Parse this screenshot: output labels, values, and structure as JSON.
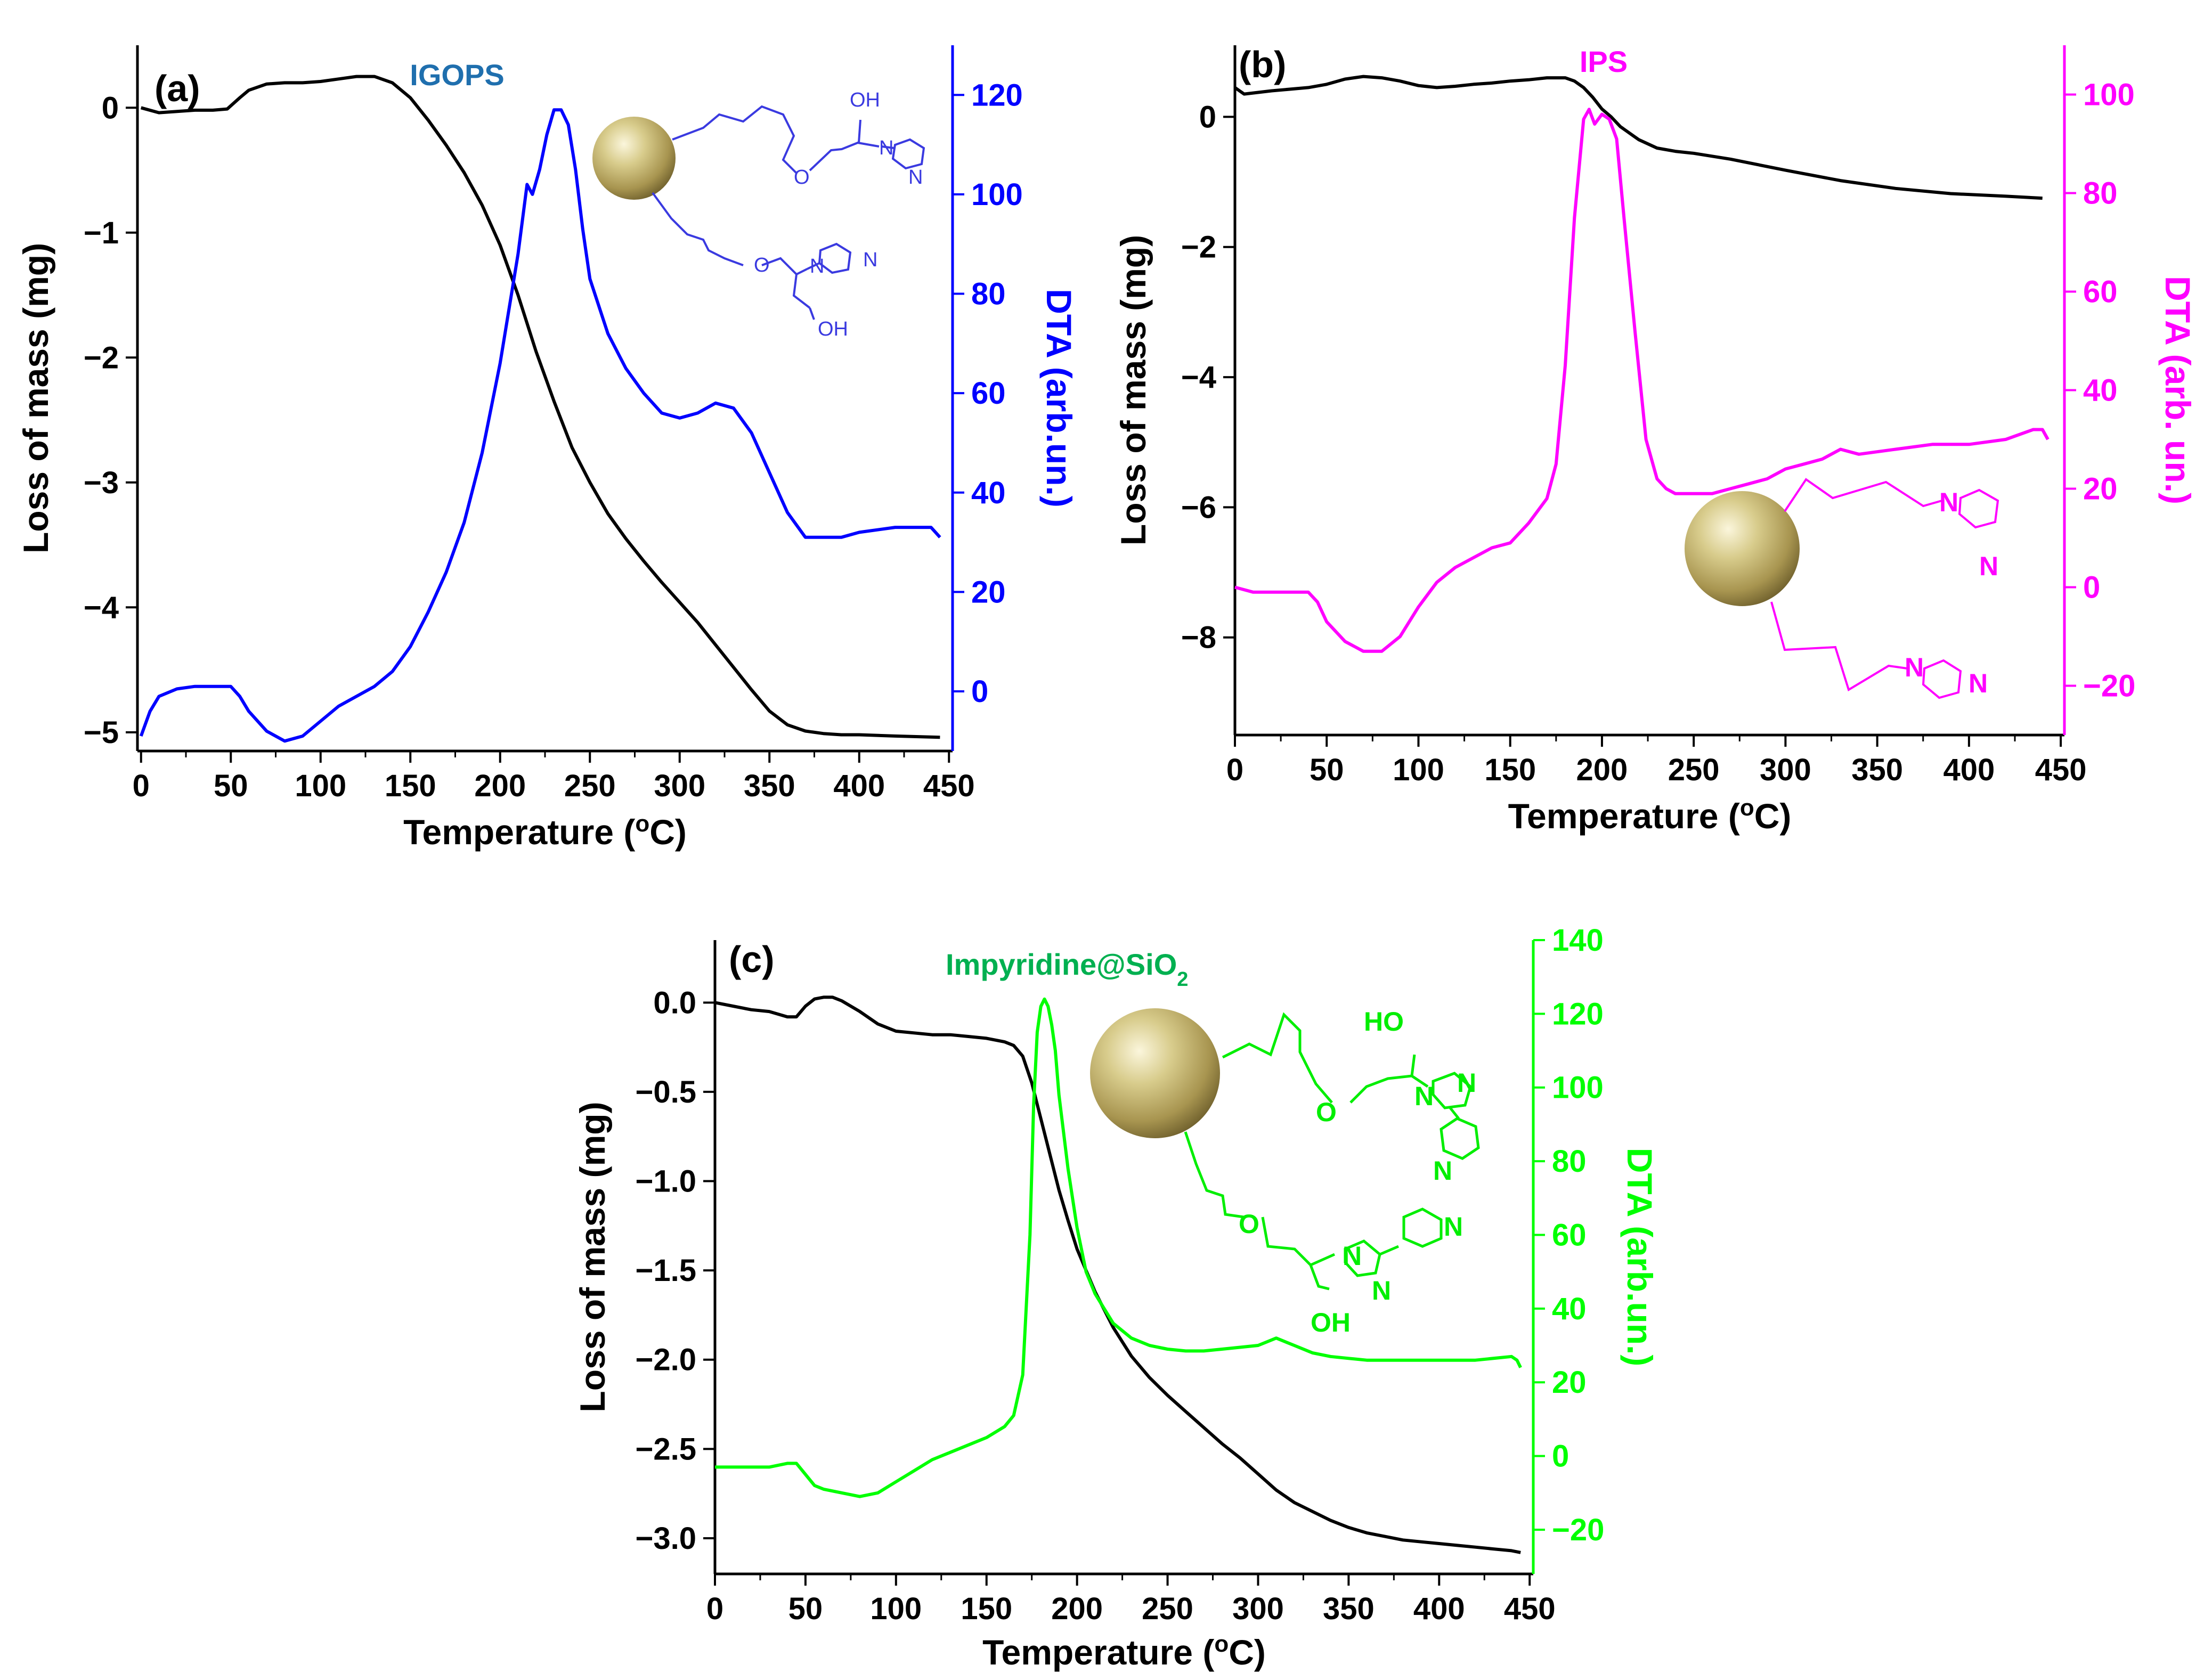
{
  "figure": {
    "panel_count": 3
  },
  "chart_data": [
    {
      "type": "line",
      "panel_label": "(a)",
      "compound_label": "IGOPS",
      "xlabel": "Temperature (",
      "xlabel_sup": "o",
      "xlabel_end": "C)",
      "ylabel_left": "Loss of mass (mg)",
      "ylabel_right": "DTA (arb.un.)",
      "xlim": [
        -2,
        452
      ],
      "ylim_left": [
        -5.15,
        0.5
      ],
      "ylim_right": [
        -12,
        130
      ],
      "xticks": [
        0,
        50,
        100,
        150,
        200,
        250,
        300,
        350,
        400,
        450
      ],
      "yticks_left": [
        0,
        -1,
        -2,
        -3,
        -4,
        -5
      ],
      "yticks_right": [
        0,
        20,
        40,
        60,
        80,
        100,
        120
      ],
      "colors": {
        "axis_left": "#000000",
        "axis_right": "#0000ff",
        "compound": "#1f6fae"
      },
      "series": [
        {
          "name": "Loss of mass",
          "axis": "left",
          "color": "#000000",
          "x": [
            0,
            10,
            20,
            30,
            40,
            48,
            55,
            60,
            70,
            80,
            90,
            100,
            110,
            120,
            130,
            140,
            150,
            160,
            170,
            180,
            190,
            200,
            210,
            220,
            230,
            240,
            250,
            260,
            270,
            280,
            290,
            300,
            310,
            320,
            330,
            340,
            350,
            360,
            370,
            380,
            390,
            400,
            420,
            445
          ],
          "y": [
            0.0,
            -0.04,
            -0.03,
            -0.02,
            -0.02,
            -0.01,
            0.08,
            0.14,
            0.19,
            0.2,
            0.2,
            0.21,
            0.23,
            0.25,
            0.25,
            0.2,
            0.08,
            -0.1,
            -0.3,
            -0.52,
            -0.78,
            -1.1,
            -1.5,
            -1.95,
            -2.35,
            -2.72,
            -3.0,
            -3.25,
            -3.45,
            -3.63,
            -3.8,
            -3.96,
            -4.12,
            -4.3,
            -4.48,
            -4.66,
            -4.83,
            -4.94,
            -4.99,
            -5.01,
            -5.02,
            -5.02,
            -5.03,
            -5.04
          ]
        },
        {
          "name": "DTA",
          "axis": "right",
          "color": "#0000ff",
          "x": [
            0,
            5,
            10,
            20,
            30,
            40,
            45,
            50,
            55,
            60,
            70,
            80,
            90,
            100,
            110,
            120,
            130,
            140,
            150,
            160,
            170,
            180,
            190,
            200,
            210,
            215,
            218,
            222,
            226,
            230,
            234,
            238,
            242,
            246,
            250,
            260,
            270,
            280,
            290,
            300,
            310,
            320,
            330,
            340,
            350,
            360,
            370,
            380,
            390,
            400,
            420,
            440,
            445
          ],
          "y": [
            -9,
            -4,
            -1,
            0.5,
            1,
            1,
            1,
            1,
            -1,
            -4,
            -8,
            -10,
            -9,
            -6,
            -3,
            -1,
            1,
            4,
            9,
            16,
            24,
            34,
            48,
            66,
            88,
            102,
            100,
            105,
            112,
            117,
            117,
            114,
            105,
            93,
            83,
            72,
            65,
            60,
            56,
            55,
            56,
            58,
            57,
            52,
            44,
            36,
            31,
            31,
            31,
            32,
            33,
            33,
            31
          ]
        }
      ]
    },
    {
      "type": "line",
      "panel_label": "(b)",
      "compound_label": "IPS",
      "xlabel": "Temperature (",
      "xlabel_sup": "o",
      "xlabel_end": "C)",
      "ylabel_left": "Loss of mass (mg)",
      "ylabel_right": "DTA (arb. un.)",
      "xlim": [
        0,
        452
      ],
      "ylim_left": [
        -9.5,
        1.1
      ],
      "ylim_right": [
        -30,
        110
      ],
      "xticks": [
        0,
        50,
        100,
        150,
        200,
        250,
        300,
        350,
        400,
        450
      ],
      "yticks_left": [
        0,
        -2,
        -4,
        -6,
        -8
      ],
      "yticks_right": [
        -20,
        0,
        20,
        40,
        60,
        80,
        100
      ],
      "colors": {
        "axis_left": "#000000",
        "axis_right": "#ff00ff",
        "compound": "#ff00ff"
      },
      "series": [
        {
          "name": "Loss of mass",
          "axis": "left",
          "color": "#000000",
          "x": [
            0,
            5,
            20,
            40,
            50,
            60,
            70,
            80,
            90,
            100,
            110,
            120,
            130,
            140,
            150,
            160,
            170,
            180,
            185,
            190,
            195,
            200,
            205,
            210,
            220,
            230,
            240,
            250,
            270,
            300,
            330,
            360,
            390,
            420,
            440
          ],
          "y": [
            0.45,
            0.35,
            0.4,
            0.45,
            0.5,
            0.58,
            0.62,
            0.6,
            0.55,
            0.48,
            0.45,
            0.47,
            0.5,
            0.52,
            0.55,
            0.57,
            0.6,
            0.6,
            0.55,
            0.45,
            0.3,
            0.12,
            0.0,
            -0.15,
            -0.35,
            -0.48,
            -0.53,
            -0.56,
            -0.65,
            -0.82,
            -0.98,
            -1.1,
            -1.18,
            -1.22,
            -1.25
          ]
        },
        {
          "name": "DTA",
          "axis": "right",
          "color": "#ff00ff",
          "x": [
            0,
            10,
            20,
            30,
            40,
            45,
            50,
            60,
            70,
            80,
            90,
            100,
            110,
            120,
            130,
            140,
            150,
            160,
            170,
            175,
            180,
            185,
            190,
            193,
            196,
            200,
            204,
            208,
            212,
            218,
            224,
            230,
            235,
            240,
            250,
            260,
            270,
            280,
            290,
            300,
            310,
            320,
            330,
            340,
            360,
            380,
            400,
            420,
            435,
            440,
            443
          ],
          "y": [
            0,
            -1,
            -1,
            -1,
            -1,
            -3,
            -7,
            -11,
            -13,
            -13,
            -10,
            -4,
            1,
            4,
            6,
            8,
            9,
            13,
            18,
            25,
            45,
            75,
            95,
            97,
            94,
            96,
            95,
            91,
            75,
            52,
            30,
            22,
            20,
            19,
            19,
            19,
            20,
            21,
            22,
            24,
            25,
            26,
            28,
            27,
            28,
            29,
            29,
            30,
            32,
            32,
            30
          ]
        }
      ]
    },
    {
      "type": "line",
      "panel_label": "(c)",
      "compound_label_main": "Impyridine@SiO",
      "compound_label_sub": "2",
      "xlabel": "Temperature (",
      "xlabel_sup": "o",
      "xlabel_end": "C)",
      "ylabel_left": "Loss of mass (mg)",
      "ylabel_right": "DTA (arb.un.)",
      "xlim": [
        0,
        452
      ],
      "ylim_left": [
        -3.2,
        0.35
      ],
      "ylim_right": [
        -32,
        140
      ],
      "xticks": [
        0,
        50,
        100,
        150,
        200,
        250,
        300,
        350,
        400,
        450
      ],
      "yticks_left": [
        0.0,
        -0.5,
        -1.0,
        -1.5,
        -2.0,
        -2.5,
        -3.0
      ],
      "yticks_right": [
        -20,
        0,
        20,
        40,
        60,
        80,
        100,
        120,
        140
      ],
      "colors": {
        "axis_left": "#000000",
        "axis_right": "#00ff00",
        "compound": "#00b050"
      },
      "series": [
        {
          "name": "Loss of mass",
          "axis": "left",
          "color": "#000000",
          "x": [
            0,
            10,
            20,
            30,
            40,
            45,
            50,
            55,
            60,
            65,
            70,
            80,
            90,
            100,
            110,
            120,
            130,
            140,
            150,
            160,
            165,
            170,
            175,
            180,
            185,
            190,
            195,
            200,
            210,
            220,
            230,
            240,
            250,
            260,
            270,
            280,
            290,
            300,
            310,
            320,
            330,
            340,
            350,
            360,
            370,
            380,
            390,
            400,
            410,
            420,
            430,
            440,
            445
          ],
          "y": [
            0.0,
            -0.02,
            -0.04,
            -0.05,
            -0.08,
            -0.08,
            -0.02,
            0.02,
            0.03,
            0.03,
            0.01,
            -0.05,
            -0.12,
            -0.16,
            -0.17,
            -0.18,
            -0.18,
            -0.19,
            -0.2,
            -0.22,
            -0.24,
            -0.3,
            -0.45,
            -0.65,
            -0.85,
            -1.05,
            -1.22,
            -1.38,
            -1.62,
            -1.82,
            -1.98,
            -2.1,
            -2.2,
            -2.29,
            -2.38,
            -2.47,
            -2.55,
            -2.64,
            -2.73,
            -2.8,
            -2.85,
            -2.9,
            -2.94,
            -2.97,
            -2.99,
            -3.01,
            -3.02,
            -3.03,
            -3.04,
            -3.05,
            -3.06,
            -3.07,
            -3.08
          ]
        },
        {
          "name": "DTA",
          "axis": "right",
          "color": "#00ff00",
          "x": [
            0,
            10,
            20,
            30,
            40,
            45,
            50,
            55,
            60,
            70,
            80,
            90,
            100,
            110,
            120,
            130,
            140,
            150,
            160,
            165,
            170,
            174,
            176,
            178,
            180,
            182,
            184,
            186,
            188,
            190,
            195,
            200,
            205,
            210,
            215,
            220,
            230,
            240,
            250,
            260,
            270,
            280,
            290,
            300,
            305,
            310,
            320,
            330,
            340,
            350,
            360,
            380,
            400,
            420,
            440,
            443,
            445
          ],
          "y": [
            -3,
            -3,
            -3,
            -3,
            -2,
            -2,
            -5,
            -8,
            -9,
            -10,
            -11,
            -10,
            -7,
            -4,
            -1,
            1,
            3,
            5,
            8,
            11,
            22,
            60,
            95,
            115,
            122,
            124,
            122,
            117,
            110,
            98,
            78,
            62,
            50,
            44,
            40,
            36,
            32,
            30,
            29,
            28.5,
            28.5,
            29,
            29.5,
            30,
            31,
            32,
            30,
            28,
            27,
            26.5,
            26,
            26,
            26,
            26,
            27,
            26,
            24
          ]
        }
      ]
    }
  ],
  "structures": {
    "igops": {
      "atoms": [
        "OH",
        "O",
        "N",
        "N",
        "O",
        "N",
        "N",
        "OH"
      ]
    },
    "ips": {
      "atoms": [
        "N",
        "N",
        "N",
        "N"
      ]
    },
    "impyridine": {
      "atoms": [
        "HO",
        "O",
        "N",
        "N",
        "N",
        "O",
        "N",
        "N",
        "N",
        "OH"
      ]
    }
  }
}
